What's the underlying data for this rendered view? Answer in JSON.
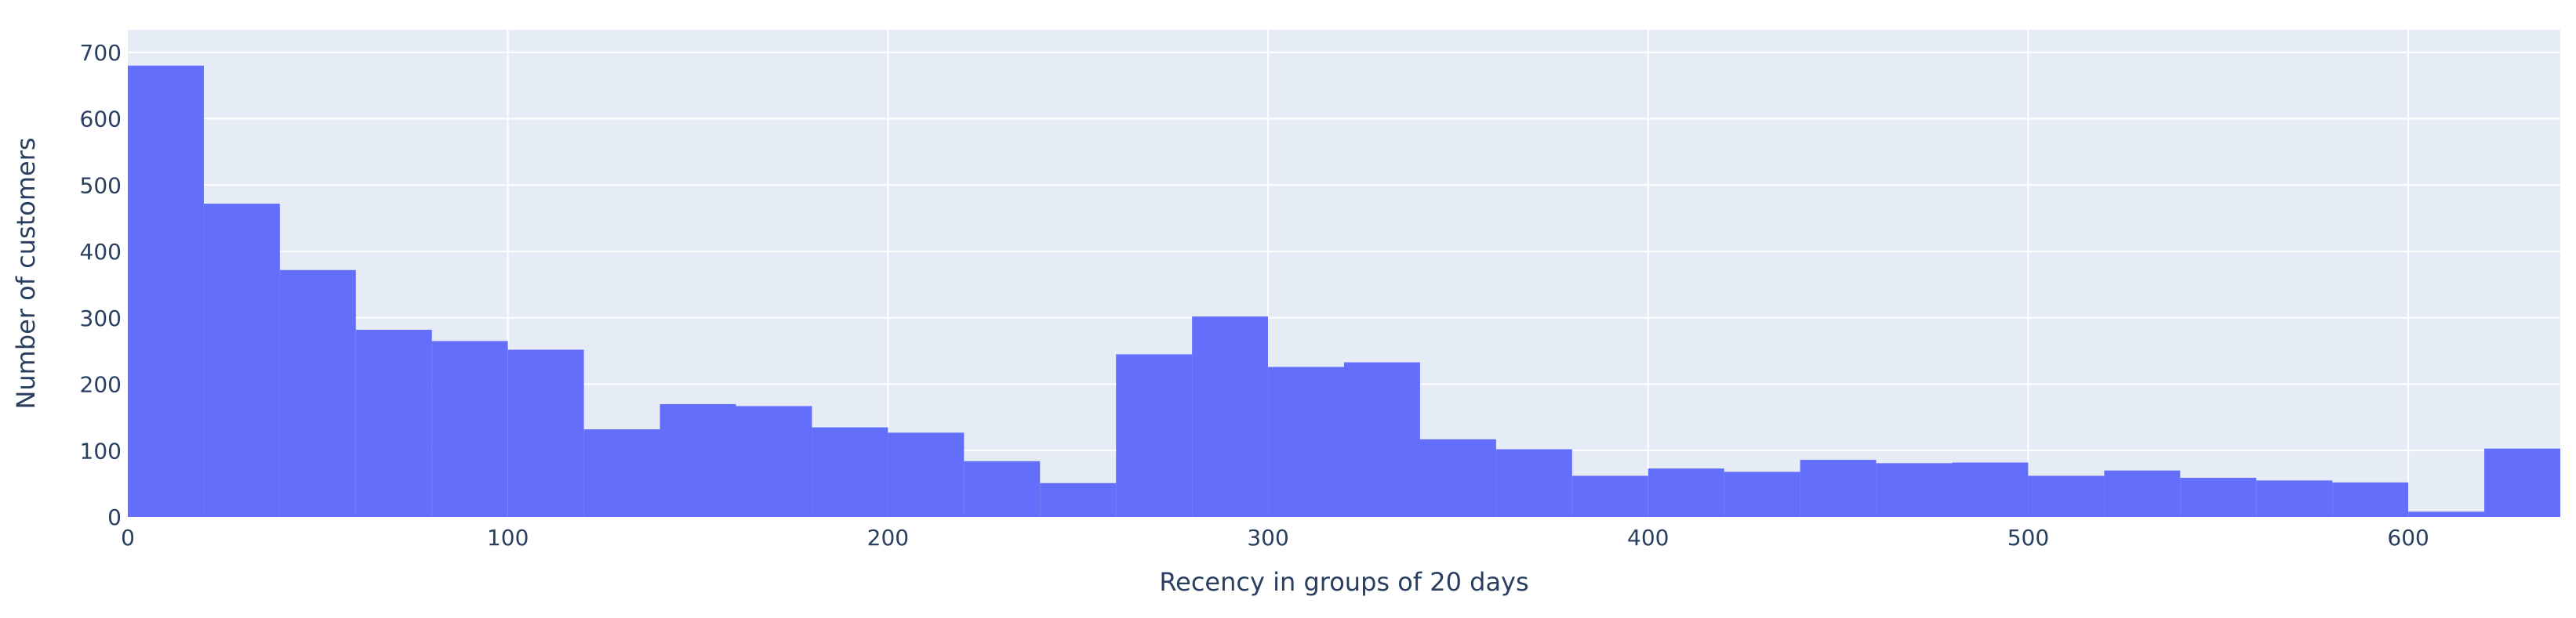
{
  "chart_data": {
    "type": "bar",
    "subtype": "histogram",
    "xlabel": "Recency in groups of 20 days",
    "ylabel": "Number of customers",
    "xlim": [
      0,
      640
    ],
    "ylim": [
      0,
      700
    ],
    "grid": true,
    "bin_width": 20,
    "bin_starts": [
      0,
      20,
      40,
      60,
      80,
      100,
      120,
      140,
      160,
      180,
      200,
      220,
      240,
      260,
      280,
      300,
      320,
      340,
      360,
      380,
      400,
      420,
      440,
      460,
      480,
      500,
      520,
      540,
      560,
      580,
      600,
      620
    ],
    "values": [
      680,
      472,
      372,
      282,
      265,
      252,
      132,
      170,
      167,
      135,
      127,
      84,
      51,
      245,
      302,
      226,
      233,
      117,
      102,
      62,
      73,
      68,
      86,
      81,
      82,
      62,
      70,
      59,
      55,
      52,
      8,
      103
    ],
    "x_ticks": [
      "0",
      "100",
      "200",
      "300",
      "400",
      "500",
      "600"
    ],
    "y_ticks": [
      "0",
      "100",
      "200",
      "300",
      "400",
      "500",
      "600",
      "700"
    ],
    "colors": {
      "bar": "#636efa",
      "plot_bg": "#e5ecf6",
      "grid": "#ffffff",
      "text": "#2a3f5f"
    }
  }
}
